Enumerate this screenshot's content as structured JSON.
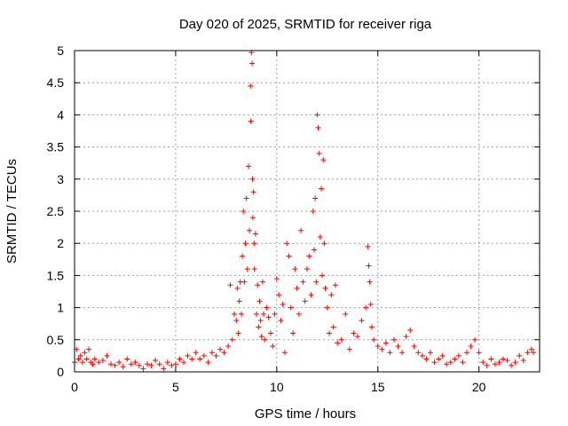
{
  "chart_data": {
    "type": "scatter",
    "title": "Day 020 of 2025, SRMTID for receiver riga",
    "xlabel": "GPS time / hours",
    "ylabel": "SRMTID / TECUs",
    "xlim": [
      0,
      23
    ],
    "ylim": [
      0,
      5
    ],
    "grid": true,
    "marker": "+",
    "colors": {
      "series": "#ff0000",
      "grid": "#a0a0a0",
      "axis": "#000000"
    },
    "xticks": [
      0,
      5,
      10,
      15,
      20
    ],
    "xtick_labels": [
      "0",
      "5",
      "10",
      "15",
      "20"
    ],
    "yticks": [
      0,
      0.5,
      1,
      1.5,
      2,
      2.5,
      3,
      3.5,
      4,
      4.5,
      5
    ],
    "ytick_labels": [
      "0",
      "0.5",
      "1",
      "1.5",
      "2",
      "2.5",
      "3",
      "3.5",
      "4",
      "4.5",
      "5"
    ],
    "series": [
      {
        "name": "SRMTID",
        "x": [
          0.0,
          0.1,
          0.2,
          0.3,
          0.4,
          0.5,
          0.6,
          0.7,
          0.8,
          0.9,
          1.0,
          1.2,
          1.4,
          1.6,
          1.8,
          2.0,
          2.2,
          2.4,
          2.6,
          2.8,
          3.0,
          3.2,
          3.4,
          3.6,
          3.8,
          4.0,
          4.2,
          4.4,
          4.6,
          4.8,
          5.0,
          5.2,
          5.4,
          5.6,
          5.8,
          6.0,
          6.2,
          6.4,
          6.6,
          6.8,
          7.0,
          7.2,
          7.4,
          7.6,
          7.7,
          7.8,
          7.9,
          8.0,
          8.05,
          8.1,
          8.15,
          8.2,
          8.25,
          8.3,
          8.35,
          8.4,
          8.45,
          8.5,
          8.55,
          8.6,
          8.65,
          8.7,
          8.72,
          8.75,
          8.78,
          8.8,
          8.82,
          8.85,
          8.88,
          8.9,
          8.95,
          9.0,
          9.05,
          9.1,
          9.15,
          9.2,
          9.25,
          9.3,
          9.35,
          9.4,
          9.5,
          9.6,
          9.7,
          9.8,
          9.9,
          10.0,
          10.1,
          10.2,
          10.3,
          10.4,
          10.5,
          10.6,
          10.7,
          10.8,
          10.9,
          11.0,
          11.1,
          11.2,
          11.3,
          11.4,
          11.5,
          11.6,
          11.7,
          11.8,
          11.85,
          11.9,
          11.95,
          12.0,
          12.05,
          12.1,
          12.15,
          12.2,
          12.25,
          12.3,
          12.35,
          12.4,
          12.5,
          12.6,
          12.7,
          12.8,
          12.9,
          13.0,
          13.2,
          13.4,
          13.6,
          13.8,
          14.0,
          14.2,
          14.4,
          14.5,
          14.55,
          14.6,
          14.65,
          14.7,
          14.8,
          15.0,
          15.2,
          15.4,
          15.6,
          15.8,
          16.0,
          16.2,
          16.4,
          16.6,
          16.8,
          17.0,
          17.2,
          17.4,
          17.6,
          17.8,
          18.0,
          18.2,
          18.4,
          18.6,
          18.8,
          19.0,
          19.2,
          19.4,
          19.6,
          19.8,
          20.0,
          20.2,
          20.4,
          20.6,
          20.8,
          21.0,
          21.2,
          21.4,
          21.6,
          21.8,
          22.0,
          22.2,
          22.4,
          22.6,
          22.7
        ],
        "y": [
          0.15,
          0.35,
          0.2,
          0.25,
          0.15,
          0.3,
          0.2,
          0.35,
          0.15,
          0.12,
          0.2,
          0.15,
          0.18,
          0.25,
          0.12,
          0.1,
          0.15,
          0.08,
          0.2,
          0.12,
          0.15,
          0.1,
          0.05,
          0.12,
          0.1,
          0.18,
          0.12,
          0.05,
          0.15,
          0.1,
          0.12,
          0.2,
          0.15,
          0.25,
          0.2,
          0.3,
          0.2,
          0.25,
          0.15,
          0.3,
          0.25,
          0.35,
          0.3,
          0.4,
          1.35,
          0.5,
          0.9,
          0.8,
          1.3,
          0.6,
          1.1,
          1.4,
          0.9,
          1.8,
          2.5,
          1.4,
          2.0,
          2.7,
          1.6,
          3.2,
          2.2,
          4.45,
          3.9,
          4.97,
          4.8,
          3.0,
          2.4,
          2.8,
          2.0,
          1.6,
          2.15,
          0.9,
          1.35,
          0.7,
          1.1,
          0.8,
          0.55,
          1.4,
          0.9,
          0.5,
          1.0,
          0.85,
          0.6,
          0.4,
          0.9,
          1.45,
          1.2,
          0.8,
          1.05,
          0.3,
          2.0,
          1.8,
          1.0,
          0.6,
          1.6,
          1.3,
          0.9,
          2.2,
          1.4,
          1.1,
          1.6,
          1.8,
          1.2,
          2.5,
          1.9,
          2.7,
          1.4,
          4.0,
          3.8,
          3.4,
          2.1,
          2.85,
          1.5,
          3.3,
          2.0,
          1.3,
          1.0,
          0.6,
          1.2,
          0.7,
          1.35,
          0.45,
          0.5,
          0.9,
          0.35,
          0.6,
          0.55,
          0.8,
          1.0,
          1.95,
          1.65,
          1.4,
          1.05,
          0.7,
          0.5,
          0.4,
          0.35,
          0.45,
          0.3,
          0.5,
          0.4,
          0.3,
          0.55,
          0.65,
          0.4,
          0.3,
          0.25,
          0.2,
          0.3,
          0.15,
          0.2,
          0.25,
          0.12,
          0.15,
          0.2,
          0.25,
          0.15,
          0.3,
          0.4,
          0.5,
          0.3,
          0.15,
          0.1,
          0.2,
          0.12,
          0.15,
          0.2,
          0.18,
          0.1,
          0.15,
          0.25,
          0.18,
          0.3,
          0.35,
          0.3
        ]
      }
    ]
  }
}
